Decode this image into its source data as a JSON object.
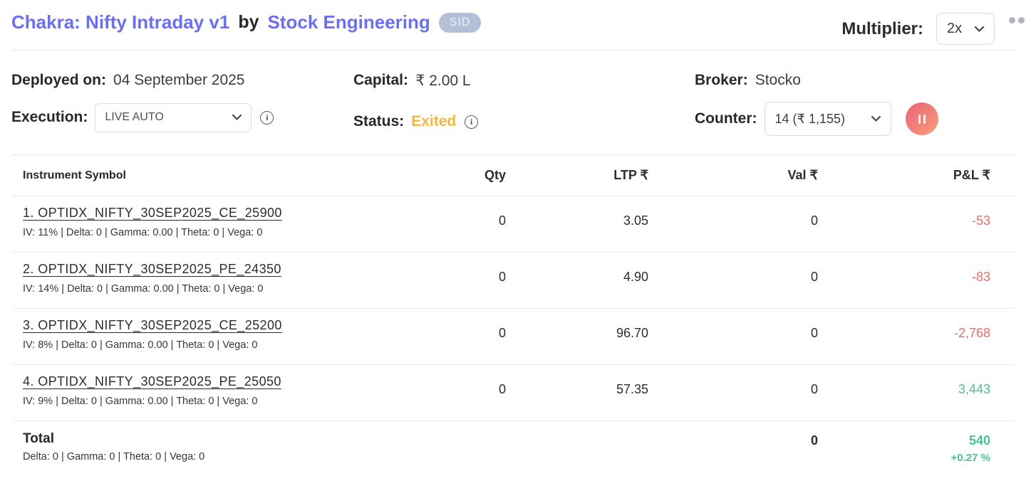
{
  "header": {
    "title": "Chakra: Nifty Intraday v1",
    "by_text": "by",
    "author": "Stock Engineering",
    "badge": "SID",
    "multiplier_label": "Multiplier:",
    "multiplier_value": "2x"
  },
  "info": {
    "deployed_label": "Deployed on:",
    "deployed_value": "04 September 2025",
    "execution_label": "Execution:",
    "execution_value": "LIVE AUTO",
    "capital_label": "Capital:",
    "capital_value": "₹ 2.00 L",
    "status_label": "Status:",
    "status_value": "Exited",
    "broker_label": "Broker:",
    "broker_value": "Stocko",
    "counter_label": "Counter:",
    "counter_value": "14 (₹ 1,155)",
    "pause_icon": "pause"
  },
  "table": {
    "columns": {
      "symbol": "Instrument Symbol",
      "qty": "Qty",
      "ltp": "LTP ₹",
      "val": "Val ₹",
      "pnl": "P&L ₹"
    },
    "rows": [
      {
        "symbol": "1. OPTIDX_NIFTY_30SEP2025_CE_25900",
        "greeks": "IV: 11% | Delta: 0 | Gamma: 0.00 | Theta: 0 | Vega: 0",
        "qty": "0",
        "ltp": "3.05",
        "val": "0",
        "pnl": "-53",
        "pnl_trend": "negative"
      },
      {
        "symbol": "2. OPTIDX_NIFTY_30SEP2025_PE_24350",
        "greeks": "IV: 14% | Delta: 0 | Gamma: 0.00 | Theta: 0 | Vega: 0",
        "qty": "0",
        "ltp": "4.90",
        "val": "0",
        "pnl": "-83",
        "pnl_trend": "negative"
      },
      {
        "symbol": "3. OPTIDX_NIFTY_30SEP2025_CE_25200",
        "greeks": "IV: 8% | Delta: 0 | Gamma: 0.00 | Theta: 0 | Vega: 0",
        "qty": "0",
        "ltp": "96.70",
        "val": "0",
        "pnl": "-2,768",
        "pnl_trend": "negative"
      },
      {
        "symbol": "4. OPTIDX_NIFTY_30SEP2025_PE_25050",
        "greeks": "IV: 9% | Delta: 0 | Gamma: 0.00 | Theta: 0 | Vega: 0",
        "qty": "0",
        "ltp": "57.35",
        "val": "0",
        "pnl": "3,443",
        "pnl_trend": "positive"
      }
    ],
    "total": {
      "label": "Total",
      "greeks": "Delta: 0 | Gamma: 0  | Theta: 0 | Vega: 0",
      "val": "0",
      "pnl": "540",
      "pnl_pct": "+0.27 %",
      "pnl_trend": "positive"
    }
  },
  "colors": {
    "accent": "#6a6ff0",
    "negative": "#f26c6c",
    "positive": "#4cc191",
    "status_warning": "#f0b840",
    "badge_bg": "#b3c0d8"
  }
}
